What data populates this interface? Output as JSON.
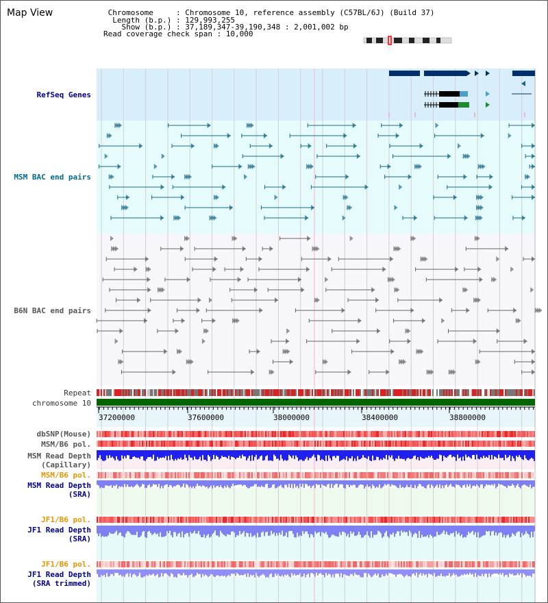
{
  "header": {
    "title": "Map View",
    "lines": [
      " Chromosome     : Chromosome 10, reference assembly (C57BL/6J) (Build 37)",
      "  Length (b.p.) : 129,993,255",
      "    Show (b.p.) : 37,189,347-39,190,348 : 2,001,002 bp",
      "Read coverage check span : 10,000"
    ]
  },
  "tracks": {
    "refseq": "RefSeq Genes",
    "msm_bac": "MSM BAC end pairs",
    "b6n_bac": "B6N BAC end pairs",
    "repeat": "Repeat",
    "chromosome": "chromosome 10",
    "dbsnp": "dbSNP(Mouse)",
    "msm_pol_1": "MSM/B6 pol.",
    "msm_depth_cap_1": "MSM Read Depth",
    "msm_depth_cap_2": "(Capillary)",
    "msm_pol_2": "MSM/B6 pol.",
    "msm_depth_sra_1": "MSM Read Depth",
    "msm_depth_sra_2": "(SRA)",
    "jf1_pol_1": "JF1/B6 pol.",
    "jf1_depth_sra_1": "JF1 Read Depth",
    "jf1_depth_sra_2": "(SRA)",
    "jf1_pol_2": "JF1/B6 pol.",
    "jf1_depth_trim_1": "JF1 Read Depth",
    "jf1_depth_trim_2": "(SRA trimmed)"
  },
  "axis": {
    "ticks": [
      "37200000",
      "37600000",
      "38000000",
      "38400000",
      "38800000"
    ]
  },
  "colors": {
    "refseq_bg": "#d8eefa",
    "msm_bac_bg": "#e6fbfb",
    "b6n_bg": "#f6f6fb",
    "gene": "#002f6c",
    "msm_bac": "#1b6b87",
    "b6n_bac": "#666666",
    "chromosome": "#006400",
    "repeat_red": "#e02020",
    "pol_red": "#f03030",
    "depth_blue": "#2020f0",
    "depth_lightblue": "#7f7ff5"
  }
}
